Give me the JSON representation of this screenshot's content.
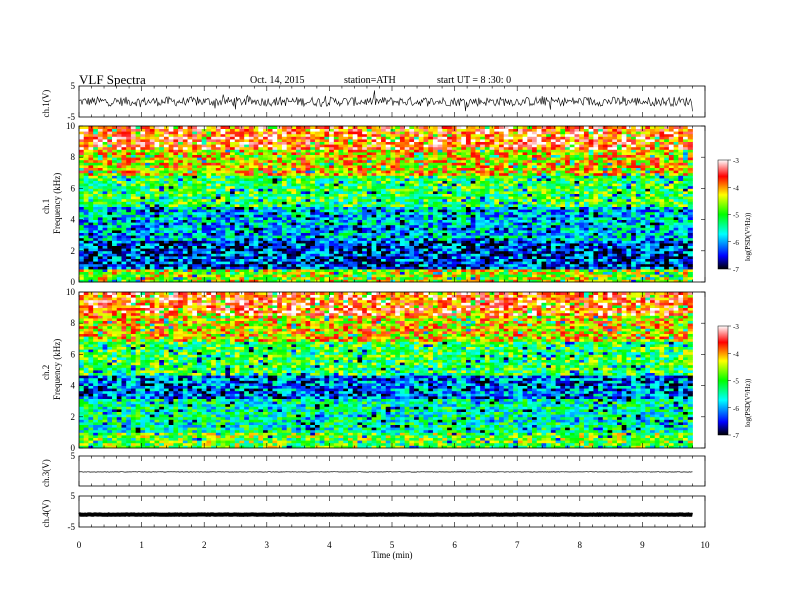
{
  "header": {
    "title": "VLF Spectra",
    "date": "Oct. 14, 2015",
    "station": "station=ATH",
    "start": "start UT = 8 :30: 0"
  },
  "chart_data": [
    {
      "type": "line",
      "ylabel": "ch.1(V)",
      "ylim": [
        -5,
        5
      ],
      "yticks": [
        "5",
        "-5"
      ],
      "xlim": [
        0,
        10
      ],
      "description_trace": "noisy waveform roughly between -1.5 and 1.5 V with occasional spikes to about ±2.5 V",
      "x_end": 9.8
    },
    {
      "type": "heatmap",
      "channel": "ch.1",
      "ylabel": "Frequency (kHz)",
      "ylim": [
        0,
        10
      ],
      "yticks": [
        "0",
        "2",
        "4",
        "6",
        "8",
        "10"
      ],
      "xlim": [
        0,
        10
      ],
      "x_end": 9.8,
      "colorbar": {
        "label": "log(PSD(V²/Hz))",
        "range": [
          -7,
          -3
        ],
        "ticks": [
          "-3",
          "-4",
          "-5",
          "-6",
          "-7"
        ]
      },
      "bands": [
        {
          "from": 0,
          "to": 0.8,
          "log_psd": -4.5
        },
        {
          "from": 0.8,
          "to": 2.6,
          "log_psd": -6.3
        },
        {
          "from": 2.6,
          "to": 4.8,
          "log_psd": -5.8
        },
        {
          "from": 4.8,
          "to": 6.8,
          "log_psd": -5.0
        },
        {
          "from": 6.8,
          "to": 8.5,
          "log_psd": -4.2
        },
        {
          "from": 8.5,
          "to": 10,
          "log_psd": -3.6
        }
      ]
    },
    {
      "type": "heatmap",
      "channel": "ch.2",
      "ylabel": "Frequency (kHz)",
      "ylim": [
        0,
        10
      ],
      "yticks": [
        "0",
        "2",
        "4",
        "6",
        "8",
        "10"
      ],
      "xlim": [
        0,
        10
      ],
      "x_end": 9.8,
      "colorbar": {
        "label": "log(PSD(V²/Hz))",
        "range": [
          -7,
          -3
        ],
        "ticks": [
          "-3",
          "-4",
          "-5",
          "-6",
          "-7"
        ]
      },
      "bands": [
        {
          "from": 0,
          "to": 1.0,
          "log_psd": -4.8
        },
        {
          "from": 1.0,
          "to": 3.2,
          "log_psd": -5.4
        },
        {
          "from": 3.2,
          "to": 4.6,
          "log_psd": -6.1
        },
        {
          "from": 4.6,
          "to": 6.8,
          "log_psd": -5.0
        },
        {
          "from": 6.8,
          "to": 8.5,
          "log_psd": -4.2
        },
        {
          "from": 8.5,
          "to": 10,
          "log_psd": -3.6
        }
      ]
    },
    {
      "type": "line",
      "ylabel": "ch.3(V)",
      "ylim": [
        -5,
        5
      ],
      "yticks": [
        "5"
      ],
      "xlim": [
        0,
        10
      ],
      "x_end": 9.8,
      "level": -0.3
    },
    {
      "type": "line",
      "ylabel": "ch.4(V)",
      "ylim": [
        -5,
        5
      ],
      "yticks": [
        "5",
        "-5"
      ],
      "xlim": [
        0,
        10
      ],
      "x_end": 9.8,
      "level": -1.0,
      "xlabel": "Time (min)",
      "xticks": [
        "0",
        "1",
        "2",
        "3",
        "4",
        "5",
        "6",
        "7",
        "8",
        "9",
        "10"
      ]
    }
  ],
  "colors": {
    "axis": "#000000",
    "colormap": [
      "#000000",
      "#0000ff",
      "#00ffff",
      "#00ff00",
      "#ffff00",
      "#ff0000",
      "#ffffff"
    ]
  }
}
